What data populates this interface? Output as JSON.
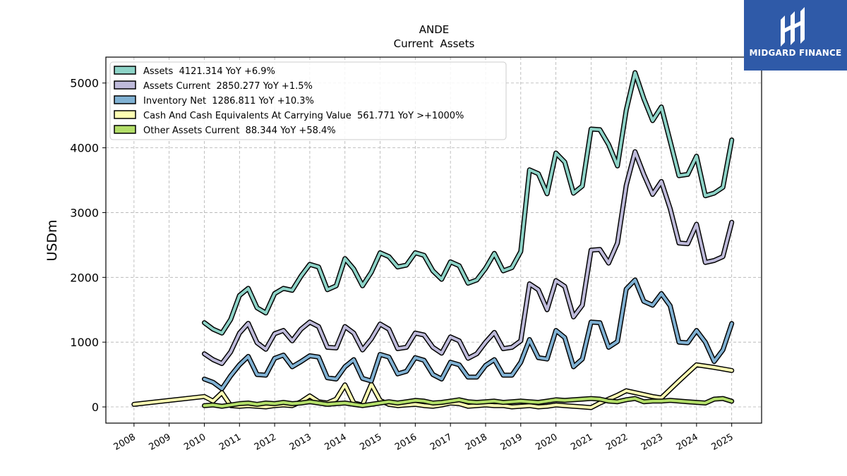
{
  "chart_data": {
    "type": "line",
    "title": "ANDE",
    "subtitle": "Current  Assets",
    "ylabel": "USDm",
    "xlabel": "",
    "ylim": [
      -250,
      5400
    ],
    "xlim": [
      2007.2,
      2025.85
    ],
    "yticks": [
      0,
      1000,
      2000,
      3000,
      4000,
      5000
    ],
    "xticks": [
      "2008",
      "2009",
      "2010",
      "2011",
      "2012",
      "2013",
      "2014",
      "2015",
      "2016",
      "2017",
      "2018",
      "2019",
      "2020",
      "2021",
      "2022",
      "2023",
      "2024",
      "2025"
    ],
    "grid": true,
    "legend_position": "top-left",
    "series": [
      {
        "name": "Assets  4121.314 YoY +6.9%",
        "color": "#8dd3c7",
        "x": [
          2010.0,
          2010.25,
          2010.5,
          2010.75,
          2011.0,
          2011.25,
          2011.5,
          2011.75,
          2012.0,
          2012.25,
          2012.5,
          2012.75,
          2013.0,
          2013.25,
          2013.5,
          2013.75,
          2014.0,
          2014.25,
          2014.5,
          2014.75,
          2015.0,
          2015.25,
          2015.5,
          2015.75,
          2016.0,
          2016.25,
          2016.5,
          2016.75,
          2017.0,
          2017.25,
          2017.5,
          2017.75,
          2018.0,
          2018.25,
          2018.5,
          2018.75,
          2019.0,
          2019.25,
          2019.5,
          2019.75,
          2020.0,
          2020.25,
          2020.5,
          2020.75,
          2021.0,
          2021.25,
          2021.5,
          2021.75,
          2022.0,
          2022.25,
          2022.5,
          2022.75,
          2023.0,
          2023.25,
          2023.5,
          2023.75,
          2024.0,
          2024.25,
          2024.5,
          2024.75,
          2025.0
        ],
        "values": [
          1300,
          1200,
          1140,
          1350,
          1720,
          1830,
          1530,
          1450,
          1750,
          1830,
          1800,
          2020,
          2200,
          2160,
          1810,
          1870,
          2290,
          2130,
          1870,
          2080,
          2380,
          2320,
          2160,
          2190,
          2380,
          2340,
          2100,
          1970,
          2240,
          2180,
          1910,
          1960,
          2140,
          2370,
          2100,
          2150,
          2400,
          3660,
          3600,
          3290,
          3920,
          3780,
          3300,
          3410,
          4290,
          4280,
          4050,
          3720,
          4580,
          5160,
          4760,
          4420,
          4630,
          4100,
          3570,
          3590,
          3870,
          3260,
          3300,
          3390,
          4121
        ]
      },
      {
        "name": "Assets Current  2850.277 YoY +1.5%",
        "color": "#bebada",
        "x": [
          2010.0,
          2010.25,
          2010.5,
          2010.75,
          2011.0,
          2011.25,
          2011.5,
          2011.75,
          2012.0,
          2012.25,
          2012.5,
          2012.75,
          2013.0,
          2013.25,
          2013.5,
          2013.75,
          2014.0,
          2014.25,
          2014.5,
          2014.75,
          2015.0,
          2015.25,
          2015.5,
          2015.75,
          2016.0,
          2016.25,
          2016.5,
          2016.75,
          2017.0,
          2017.25,
          2017.5,
          2017.75,
          2018.0,
          2018.25,
          2018.5,
          2018.75,
          2019.0,
          2019.25,
          2019.5,
          2019.75,
          2020.0,
          2020.25,
          2020.5,
          2020.75,
          2021.0,
          2021.25,
          2021.5,
          2021.75,
          2022.0,
          2022.25,
          2022.5,
          2022.75,
          2023.0,
          2023.25,
          2023.5,
          2023.75,
          2024.0,
          2024.25,
          2024.5,
          2024.75,
          2025.0
        ],
        "values": [
          820,
          730,
          670,
          850,
          1140,
          1290,
          990,
          890,
          1130,
          1180,
          1020,
          1200,
          1310,
          1240,
          920,
          910,
          1240,
          1140,
          880,
          1050,
          1280,
          1200,
          900,
          920,
          1140,
          1110,
          920,
          830,
          1080,
          1020,
          750,
          820,
          1000,
          1150,
          900,
          920,
          1020,
          1900,
          1810,
          1500,
          1950,
          1860,
          1390,
          1570,
          2420,
          2430,
          2220,
          2530,
          3420,
          3940,
          3590,
          3280,
          3480,
          3060,
          2530,
          2520,
          2820,
          2230,
          2260,
          2320,
          2850
        ]
      },
      {
        "name": "Inventory Net  1286.811 YoY +10.3%",
        "color": "#80b1d3",
        "x": [
          2010.0,
          2010.25,
          2010.5,
          2010.75,
          2011.0,
          2011.25,
          2011.5,
          2011.75,
          2012.0,
          2012.25,
          2012.5,
          2012.75,
          2013.0,
          2013.25,
          2013.5,
          2013.75,
          2014.0,
          2014.25,
          2014.5,
          2014.75,
          2015.0,
          2015.25,
          2015.5,
          2015.75,
          2016.0,
          2016.25,
          2016.5,
          2016.75,
          2017.0,
          2017.25,
          2017.5,
          2017.75,
          2018.0,
          2018.25,
          2018.5,
          2018.75,
          2019.0,
          2019.25,
          2019.5,
          2019.75,
          2020.0,
          2020.25,
          2020.5,
          2020.75,
          2021.0,
          2021.25,
          2021.5,
          2021.75,
          2022.0,
          2022.25,
          2022.5,
          2022.75,
          2023.0,
          2023.25,
          2023.5,
          2023.75,
          2024.0,
          2024.25,
          2024.5,
          2024.75,
          2025.0
        ],
        "values": [
          430,
          380,
          280,
          480,
          650,
          780,
          500,
          490,
          750,
          800,
          620,
          700,
          790,
          770,
          450,
          430,
          620,
          730,
          440,
          400,
          810,
          770,
          510,
          550,
          760,
          720,
          500,
          430,
          690,
          650,
          460,
          460,
          640,
          730,
          490,
          490,
          690,
          1040,
          760,
          740,
          1180,
          1070,
          620,
          740,
          1310,
          1300,
          920,
          1010,
          1820,
          1960,
          1630,
          1570,
          1750,
          1560,
          1000,
          990,
          1180,
          1000,
          700,
          880,
          1287
        ]
      },
      {
        "name": "Cash And Cash Equivalents At Carrying Value  561.771 YoY >+1000%",
        "color": "#ffffb3",
        "x": [
          2008.0,
          2010.0,
          2010.25,
          2010.5,
          2010.75,
          2011.0,
          2011.25,
          2011.5,
          2011.75,
          2012.0,
          2012.25,
          2012.5,
          2012.75,
          2013.0,
          2013.25,
          2013.5,
          2013.75,
          2014.0,
          2014.25,
          2014.5,
          2014.75,
          2015.0,
          2015.25,
          2015.5,
          2015.75,
          2016.0,
          2016.25,
          2016.5,
          2016.75,
          2017.0,
          2017.25,
          2017.5,
          2017.75,
          2018.0,
          2018.25,
          2018.5,
          2018.75,
          2019.0,
          2019.25,
          2019.5,
          2019.75,
          2020.0,
          2020.25,
          2020.5,
          2020.75,
          2021.0,
          2021.25,
          2021.5,
          2021.75,
          2022.0,
          2022.25,
          2022.5,
          2022.75,
          2023.0,
          2023.5,
          2024.0,
          2024.5,
          2025.0
        ],
        "values": [
          40,
          160,
          90,
          220,
          20,
          10,
          20,
          10,
          0,
          20,
          30,
          20,
          80,
          170,
          80,
          60,
          120,
          340,
          60,
          30,
          350,
          100,
          40,
          20,
          30,
          40,
          20,
          10,
          30,
          60,
          50,
          10,
          20,
          30,
          20,
          20,
          0,
          10,
          20,
          0,
          10,
          30,
          20,
          10,
          0,
          -10,
          60,
          120,
          180,
          250,
          220,
          190,
          160,
          140,
          400,
          650,
          610,
          562
        ]
      },
      {
        "name": "Other Assets Current  88.344 YoY +58.4%",
        "color": "#b3de69",
        "x": [
          2010.0,
          2010.25,
          2010.5,
          2010.75,
          2011.0,
          2011.25,
          2011.5,
          2011.75,
          2012.0,
          2012.25,
          2012.5,
          2012.75,
          2013.0,
          2013.25,
          2013.5,
          2013.75,
          2014.0,
          2014.25,
          2014.5,
          2014.75,
          2015.0,
          2015.25,
          2015.5,
          2015.75,
          2016.0,
          2016.25,
          2016.5,
          2016.75,
          2017.0,
          2017.25,
          2017.5,
          2017.75,
          2018.0,
          2018.25,
          2018.5,
          2018.75,
          2019.0,
          2019.25,
          2019.5,
          2019.75,
          2020.0,
          2020.25,
          2020.5,
          2020.75,
          2021.0,
          2021.25,
          2021.5,
          2021.75,
          2022.0,
          2022.25,
          2022.5,
          2022.75,
          2023.0,
          2023.25,
          2023.5,
          2023.75,
          2024.0,
          2024.25,
          2024.5,
          2024.75,
          2025.0
        ],
        "values": [
          20,
          30,
          10,
          30,
          50,
          60,
          40,
          60,
          50,
          70,
          50,
          60,
          80,
          60,
          40,
          50,
          60,
          40,
          20,
          40,
          60,
          80,
          60,
          80,
          100,
          90,
          60,
          70,
          90,
          110,
          80,
          70,
          80,
          90,
          70,
          80,
          90,
          80,
          70,
          90,
          110,
          100,
          110,
          120,
          130,
          120,
          90,
          80,
          110,
          130,
          80,
          90,
          90,
          100,
          90,
          80,
          70,
          60,
          120,
          130,
          88
        ]
      }
    ]
  },
  "logo": {
    "text": "MIDGARD FINANCE"
  }
}
